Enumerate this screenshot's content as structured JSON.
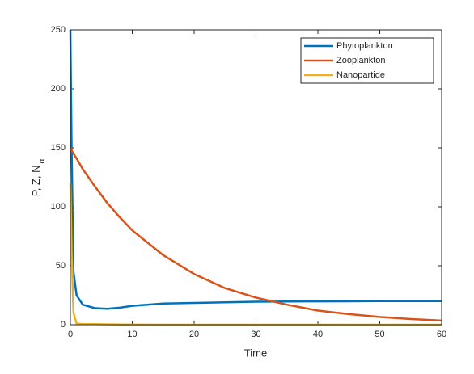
{
  "chart_data": {
    "type": "line",
    "xlabel": "Time",
    "ylabel": "P, Z, N",
    "ylabel_subscript": "α",
    "x": [
      0,
      0.2,
      0.5,
      1,
      2,
      4,
      6,
      8,
      10,
      15,
      20,
      25,
      30,
      35,
      40,
      45,
      50,
      55,
      60
    ],
    "series": [
      {
        "name": "Phytoplankton",
        "color": "#0072bd",
        "values": [
          250,
          150,
          45,
          25,
          17,
          14,
          13.5,
          14.5,
          16,
          18,
          18.5,
          19,
          19.5,
          19.7,
          19.8,
          19.9,
          20,
          20,
          20
        ]
      },
      {
        "name": "Zooplankton",
        "color": "#d95319",
        "values": [
          150,
          148,
          145,
          141,
          132,
          117,
          103,
          91,
          80,
          59,
          43,
          31,
          23,
          17,
          12,
          9,
          6.6,
          4.8,
          3.5
        ]
      },
      {
        "name": "Nanopartide",
        "color": "#edb120",
        "values": [
          120,
          60,
          10,
          1,
          0.5,
          0.5,
          0.3,
          0.2,
          0.1,
          0,
          0,
          0,
          0,
          0,
          0,
          0,
          0,
          0,
          0
        ]
      }
    ],
    "xlim": [
      0,
      60
    ],
    "xticks": [
      0,
      10,
      20,
      30,
      40,
      50,
      60
    ],
    "ylim": [
      0,
      250
    ],
    "yticks": [
      0,
      50,
      100,
      150,
      200,
      250
    ],
    "grid": false,
    "legend": "top-right"
  }
}
